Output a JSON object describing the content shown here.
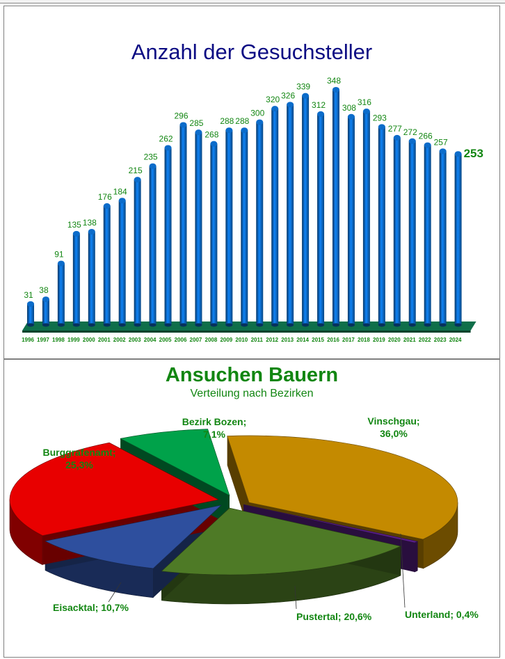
{
  "chart_data": [
    {
      "type": "bar",
      "title": "Anzahl der Gesuchsteller",
      "categories": [
        "1996",
        "1997",
        "1998",
        "1999",
        "2000",
        "2001",
        "2002",
        "2003",
        "2004",
        "2005",
        "2006",
        "2007",
        "2008",
        "2009",
        "2010",
        "2011",
        "2012",
        "2013",
        "2014",
        "2015",
        "2016",
        "2017",
        "2018",
        "2019",
        "2020",
        "2021",
        "2022",
        "2023",
        "2024"
      ],
      "values": [
        31,
        38,
        91,
        135,
        138,
        176,
        184,
        215,
        235,
        262,
        296,
        285,
        268,
        288,
        288,
        300,
        320,
        326,
        339,
        312,
        348,
        308,
        316,
        293,
        277,
        272,
        266,
        257,
        253
      ],
      "ylim": [
        0,
        350
      ],
      "grid": false,
      "colors": {
        "bar": "#0b62b8",
        "floor": "#0f6f4a",
        "labels": "#128612",
        "title": "#0b0b83"
      }
    },
    {
      "type": "pie",
      "title": "Ansuchen Bauern",
      "subtitle": "Verteilung nach Bezirken",
      "slices": [
        {
          "label": "Vinschgau",
          "value": 36.0,
          "text": "Vinschgau;",
          "pct": "36,0%",
          "color": "#c48a00"
        },
        {
          "label": "Unterland",
          "value": 0.4,
          "text": "Unterland; 0,4%",
          "color": "#5a1f8a"
        },
        {
          "label": "Pustertal",
          "value": 20.6,
          "text": "Pustertal; 20,6%",
          "color": "#4e7a26"
        },
        {
          "label": "Eisacktal",
          "value": 10.7,
          "text": "Eisacktal; 10,7%",
          "color": "#2e4f9e"
        },
        {
          "label": "Burggrafenamt",
          "value": 25.3,
          "text": "Burggrafenamt;",
          "pct": "25,3%",
          "color": "#e80000"
        },
        {
          "label": "Bezirk Bozen",
          "value": 7.1,
          "text": "Bezirk Bozen;",
          "pct": "7,1%",
          "color": "#00a24a"
        }
      ],
      "colors": {
        "labels": "#128612",
        "title": "#128612"
      }
    }
  ]
}
